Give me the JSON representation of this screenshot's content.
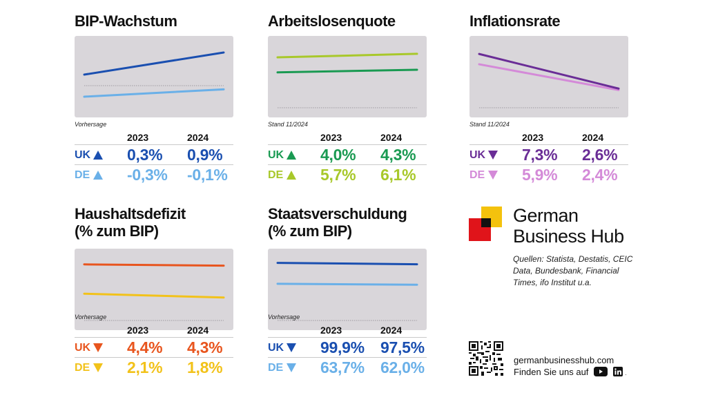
{
  "years": [
    "2023",
    "2024"
  ],
  "panels": [
    {
      "id": "bip",
      "title": "BIP-Wachstum",
      "note": "Vorhersage",
      "rows": [
        {
          "country": "UK",
          "trend": "up",
          "color": "#1a4fb0",
          "values": [
            "0,3%",
            "0,9%"
          ]
        },
        {
          "country": "DE",
          "trend": "up",
          "color": "#6ab0e8",
          "values": [
            "-0,3%",
            "-0,1%"
          ]
        }
      ]
    },
    {
      "id": "arbeitslosen",
      "title": "Arbeitslosenquote",
      "note": "Stand 11/2024",
      "rows": [
        {
          "country": "UK",
          "trend": "up",
          "color": "#1a9a52",
          "values": [
            "4,0%",
            "4,3%"
          ]
        },
        {
          "country": "DE",
          "trend": "up",
          "color": "#a8c82a",
          "values": [
            "5,7%",
            "6,1%"
          ]
        }
      ]
    },
    {
      "id": "inflation",
      "title": "Inflationsrate",
      "note": "Stand 11/2024",
      "rows": [
        {
          "country": "UK",
          "trend": "down",
          "color": "#6a2d96",
          "values": [
            "7,3%",
            "2,6%"
          ]
        },
        {
          "country": "DE",
          "trend": "down",
          "color": "#d48ad8",
          "values": [
            "5,9%",
            "2,4%"
          ]
        }
      ]
    },
    {
      "id": "haushalt",
      "title": "Haushaltsdefizit",
      "title2": "(% zum BIP)",
      "note": "Vorhersage",
      "rows": [
        {
          "country": "UK",
          "trend": "down",
          "color": "#e8551e",
          "values": [
            "4,4%",
            "4,3%"
          ]
        },
        {
          "country": "DE",
          "trend": "down",
          "color": "#f2c21a",
          "values": [
            "2,1%",
            "1,8%"
          ]
        }
      ]
    },
    {
      "id": "staat",
      "title": "Staatsverschuldung",
      "title2": "(% zum BIP)",
      "note": "Vorhersage",
      "rows": [
        {
          "country": "UK",
          "trend": "down",
          "color": "#1a4fb0",
          "values": [
            "99,9%",
            "97,5%"
          ]
        },
        {
          "country": "DE",
          "trend": "down",
          "color": "#6ab0e8",
          "values": [
            "63,7%",
            "62,0%"
          ]
        }
      ]
    }
  ],
  "chart_data": [
    {
      "type": "line",
      "title": "BIP-Wachstum",
      "x": [
        "2023",
        "2024"
      ],
      "ylim": [
        -0.6,
        1.2
      ],
      "baseline": 0,
      "series": [
        {
          "name": "UK",
          "values": [
            0.3,
            0.9
          ],
          "color": "#1a4fb0"
        },
        {
          "name": "DE",
          "values": [
            -0.3,
            -0.1
          ],
          "color": "#6ab0e8"
        }
      ]
    },
    {
      "type": "line",
      "title": "Arbeitslosenquote",
      "x": [
        "2023",
        "2024"
      ],
      "ylim": [
        0,
        7.5
      ],
      "baseline": 0,
      "series": [
        {
          "name": "UK",
          "values": [
            4.0,
            4.3
          ],
          "color": "#1a9a52"
        },
        {
          "name": "DE",
          "values": [
            5.7,
            6.1
          ],
          "color": "#a8c82a"
        }
      ]
    },
    {
      "type": "line",
      "title": "Inflationsrate",
      "x": [
        "2023",
        "2024"
      ],
      "ylim": [
        0,
        9
      ],
      "baseline": 0,
      "series": [
        {
          "name": "UK",
          "values": [
            7.3,
            2.6
          ],
          "color": "#6a2d96"
        },
        {
          "name": "DE",
          "values": [
            5.9,
            2.4
          ],
          "color": "#d48ad8"
        }
      ]
    },
    {
      "type": "line",
      "title": "Haushaltsdefizit (% zum BIP)",
      "x": [
        "2023",
        "2024"
      ],
      "ylim": [
        0,
        5.2
      ],
      "baseline": 0,
      "series": [
        {
          "name": "UK",
          "values": [
            4.4,
            4.3
          ],
          "color": "#e8551e"
        },
        {
          "name": "DE",
          "values": [
            2.1,
            1.8
          ],
          "color": "#f2c21a"
        }
      ]
    },
    {
      "type": "line",
      "title": "Staatsverschuldung (% zum BIP)",
      "x": [
        "2023",
        "2024"
      ],
      "ylim": [
        0,
        115
      ],
      "baseline": 0,
      "series": [
        {
          "name": "UK",
          "values": [
            99.9,
            97.5
          ],
          "color": "#1a4fb0"
        },
        {
          "name": "DE",
          "values": [
            63.7,
            62.0
          ],
          "color": "#6ab0e8"
        }
      ]
    }
  ],
  "brand": {
    "name_line1": "German",
    "name_line2": "Business Hub",
    "sources": "Quellen: Statista, Destatis, CEIC Data, Bundesbank, Financial Times, ifo Institut u.a.",
    "url": "germanbusinesshub.com",
    "find_us": "Finden Sie uns auf",
    "social": [
      "youtube-icon",
      "linkedin-icon"
    ]
  }
}
